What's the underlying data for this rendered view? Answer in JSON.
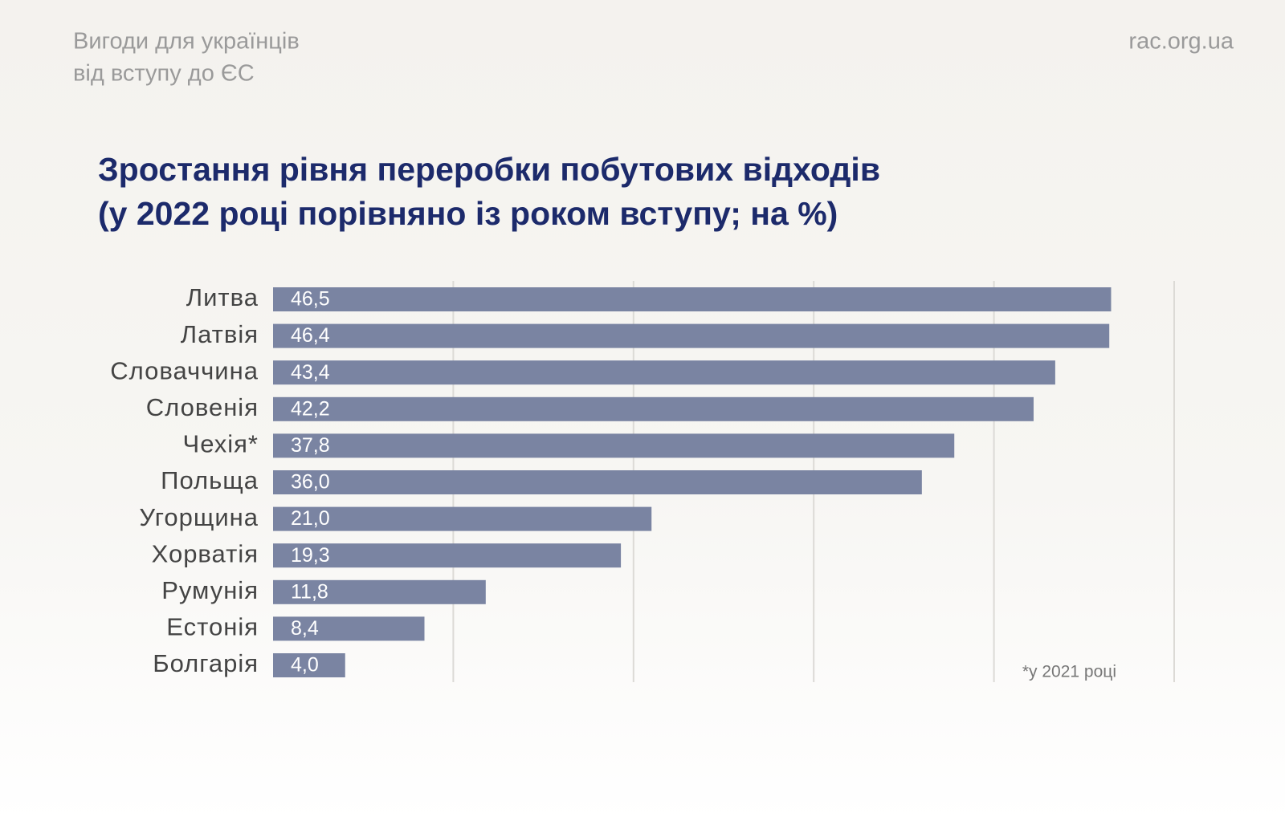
{
  "header": {
    "lines": [
      "Вигоди для українців",
      "від вступу до ЄС"
    ],
    "site": "rac.org.ua"
  },
  "chart_data": {
    "type": "barh",
    "title": [
      "Зростання рівня переробки побутових відходів",
      "(у 2022 році порівняно із роком вступу; на %)"
    ],
    "categories": [
      "Литва",
      "Латвія",
      "Словаччина",
      "Словенія",
      "Чехія*",
      "Польща",
      "Угорщина",
      "Хорватія",
      "Румунія",
      "Естонія",
      "Болгарія"
    ],
    "values": [
      46.5,
      46.4,
      43.4,
      42.2,
      37.8,
      36.0,
      21.0,
      19.3,
      11.8,
      8.4,
      4.0
    ],
    "value_labels": [
      "46,5",
      "46,4",
      "43,4",
      "42,2",
      "37,8",
      "36,0",
      "21,0",
      "19,3",
      "11,8",
      "8,4",
      "4,0"
    ],
    "color": "#7a84a2",
    "xlim": [
      0,
      50
    ],
    "xticks": [
      10,
      20,
      30,
      40,
      50
    ],
    "grid": true,
    "note": "*у 2021 році"
  }
}
